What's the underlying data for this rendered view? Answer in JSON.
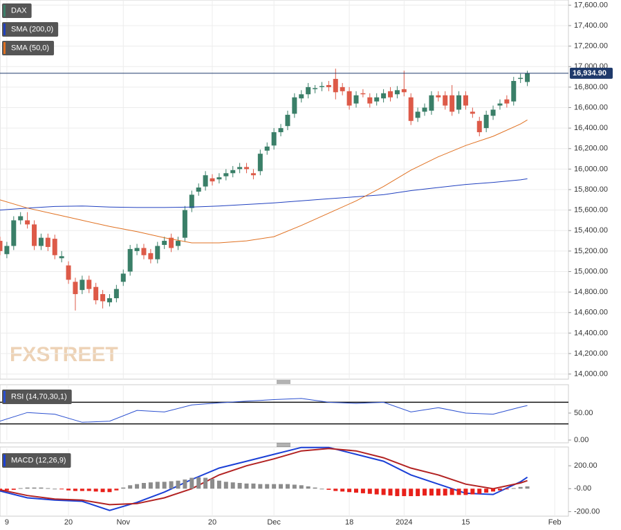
{
  "chart_data": [
    {
      "type": "candlestick",
      "watermark": "FXSTREET",
      "xlim": [
        0,
        83
      ],
      "ylim": [
        13950,
        17650
      ],
      "yticks": [
        {
          "value": 14000,
          "label": "14,000.00"
        },
        {
          "value": 14200,
          "label": "14,200.00"
        },
        {
          "value": 14400,
          "label": "14,400.00"
        },
        {
          "value": 14600,
          "label": "14,600.00"
        },
        {
          "value": 14800,
          "label": "14,800.00"
        },
        {
          "value": 15000,
          "label": "15,000.00"
        },
        {
          "value": 15200,
          "label": "15,200.00"
        },
        {
          "value": 15400,
          "label": "15,400.00"
        },
        {
          "value": 15600,
          "label": "15,600.00"
        },
        {
          "value": 15800,
          "label": "15,800.00"
        },
        {
          "value": 16000,
          "label": "16,000.00"
        },
        {
          "value": 16200,
          "label": "16,200.00"
        },
        {
          "value": 16400,
          "label": "16,400.00"
        },
        {
          "value": 16600,
          "label": "16,600.00"
        },
        {
          "value": 16800,
          "label": "16,800.00"
        },
        {
          "value": 17000,
          "label": "17,000.00"
        },
        {
          "value": 17200,
          "label": "17,200.00"
        },
        {
          "value": 17400,
          "label": "17,400.00"
        },
        {
          "value": 17600,
          "label": "17,600.00"
        }
      ],
      "last_value": {
        "value": 16934.9,
        "label": "16,934.90"
      },
      "last_color": "#1f3a6b",
      "grid": true,
      "series": [
        {
          "name": "DAX",
          "type": "candle",
          "color": "#3a7f68",
          "up_color": "#3a7f68",
          "down_color": "#dd5a48",
          "open": [
            15300,
            15170,
            15250,
            15500,
            15500,
            15460,
            15250,
            15330,
            15320,
            15130,
            15060,
            14900,
            14820,
            14920,
            14850,
            14780,
            14700,
            14740,
            14900,
            15000,
            15200,
            15230,
            15180,
            15120,
            15260,
            15330,
            15250,
            15330,
            15620,
            15780,
            15830,
            15910,
            15900,
            15930,
            15960,
            16000,
            16020,
            15960,
            15980,
            16180,
            16230,
            16360,
            16420,
            16540,
            16690,
            16730,
            16780,
            16800,
            16820,
            16880,
            16800,
            16760,
            16640,
            16740,
            16700,
            16660,
            16690,
            16760,
            16730,
            16780,
            16700,
            16500,
            16560,
            16570,
            16720,
            16720,
            16720,
            16580,
            16720,
            16560,
            16470,
            16400,
            16520,
            16620,
            16680,
            16660,
            16880,
            16850
          ],
          "high": [
            15340,
            15290,
            15540,
            15580,
            15580,
            15500,
            15370,
            15370,
            15360,
            15200,
            15100,
            14940,
            14960,
            14960,
            14890,
            14820,
            14780,
            14870,
            15020,
            15260,
            15270,
            15270,
            15220,
            15290,
            15340,
            15370,
            15340,
            15640,
            15790,
            15860,
            15980,
            15950,
            15960,
            16000,
            16030,
            16060,
            16060,
            16000,
            16190,
            16260,
            16400,
            16440,
            16570,
            16740,
            16770,
            16840,
            16820,
            16850,
            16860,
            16980,
            16840,
            16800,
            16760,
            16780,
            16740,
            16740,
            16780,
            16800,
            16810,
            16960,
            16740,
            16600,
            16640,
            16760,
            16760,
            16760,
            16820,
            16760,
            16760,
            16600,
            16510,
            16570,
            16620,
            16680,
            16720,
            16900,
            16930,
            16960
          ],
          "low": [
            15160,
            15130,
            15210,
            15460,
            15420,
            15210,
            15210,
            15200,
            15120,
            15090,
            14880,
            14620,
            14780,
            14790,
            14680,
            14640,
            14660,
            14700,
            14860,
            14960,
            15160,
            15120,
            15080,
            15080,
            15220,
            15190,
            15210,
            15290,
            15580,
            15740,
            15790,
            15840,
            15860,
            15890,
            15920,
            15960,
            15960,
            15900,
            15940,
            16140,
            16190,
            16320,
            16380,
            16500,
            16650,
            16690,
            16740,
            16760,
            16760,
            16680,
            16720,
            16580,
            16600,
            16700,
            16600,
            16620,
            16650,
            16660,
            16690,
            16710,
            16430,
            16460,
            16520,
            16530,
            16660,
            16580,
            16520,
            16540,
            16580,
            16500,
            16320,
            16360,
            16480,
            16580,
            16600,
            16620,
            16840,
            16810
          ],
          "close": [
            15200,
            15250,
            15500,
            15540,
            15460,
            15250,
            15330,
            15240,
            15160,
            15150,
            14920,
            14780,
            14920,
            14830,
            14720,
            14710,
            14740,
            14830,
            14980,
            15220,
            15230,
            15160,
            15120,
            15250,
            15300,
            15230,
            15300,
            15600,
            15750,
            15820,
            15940,
            15880,
            15920,
            15960,
            15990,
            16020,
            16000,
            15940,
            16150,
            16220,
            16360,
            16400,
            16530,
            16700,
            16730,
            16800,
            16790,
            16810,
            16800,
            16750,
            16760,
            16620,
            16720,
            16730,
            16640,
            16700,
            16740,
            16700,
            16770,
            16750,
            16470,
            16560,
            16600,
            16720,
            16700,
            16620,
            16560,
            16720,
            16620,
            16540,
            16360,
            16530,
            16580,
            16640,
            16640,
            16860,
            16890,
            16935
          ]
        },
        {
          "name": "SMA (200,0)",
          "type": "line",
          "color": "#1f3fbf",
          "x": [
            0,
            4,
            8,
            12,
            16,
            20,
            24,
            28,
            32,
            36,
            40,
            44,
            48,
            52,
            56,
            60,
            64,
            68,
            72,
            76,
            77
          ],
          "values": [
            15600,
            15620,
            15635,
            15640,
            15630,
            15625,
            15625,
            15630,
            15640,
            15655,
            15670,
            15690,
            15710,
            15730,
            15750,
            15790,
            15820,
            15850,
            15870,
            15895,
            15905
          ]
        },
        {
          "name": "SMA (50,0)",
          "type": "line",
          "color": "#e07020",
          "x": [
            0,
            4,
            8,
            12,
            16,
            20,
            24,
            28,
            32,
            36,
            40,
            44,
            48,
            52,
            56,
            60,
            64,
            68,
            72,
            76,
            77
          ],
          "values": [
            15700,
            15620,
            15560,
            15500,
            15440,
            15390,
            15330,
            15280,
            15280,
            15300,
            15340,
            15450,
            15570,
            15690,
            15830,
            15990,
            16120,
            16230,
            16320,
            16440,
            16480
          ]
        }
      ]
    },
    {
      "type": "line",
      "xlim": [
        0,
        83
      ],
      "ylim": [
        0,
        100
      ],
      "yticks": [
        {
          "value": 0,
          "label": "0.00"
        },
        {
          "value": 50,
          "label": "50.00"
        }
      ],
      "levels": [
        70,
        30
      ],
      "series": [
        {
          "name": "RSI (14,70,30,1)",
          "color": "#2a4fd0",
          "x": [
            0,
            4,
            8,
            12,
            16,
            20,
            24,
            28,
            32,
            36,
            40,
            44,
            48,
            52,
            56,
            60,
            64,
            68,
            72,
            76,
            77
          ],
          "values": [
            35,
            51,
            48,
            33,
            35,
            55,
            52,
            65,
            69,
            72,
            75,
            77,
            70,
            68,
            70,
            52,
            60,
            50,
            48,
            61,
            64
          ]
        }
      ]
    },
    {
      "type": "macd",
      "xlim": [
        0,
        83
      ],
      "ylim": [
        -240,
        340
      ],
      "yticks": [
        {
          "value": -200,
          "label": "-200.00"
        },
        {
          "value": 0,
          "label": "-0.00"
        },
        {
          "value": 200,
          "label": "200.00"
        }
      ],
      "xticks": [
        {
          "value": 1,
          "label": "9"
        },
        {
          "value": 10,
          "label": "20"
        },
        {
          "value": 18,
          "label": "Nov"
        },
        {
          "value": 31,
          "label": "20"
        },
        {
          "value": 40,
          "label": "Dec"
        },
        {
          "value": 51,
          "label": "18"
        },
        {
          "value": 59,
          "label": "2024"
        },
        {
          "value": 68,
          "label": "15"
        },
        {
          "value": 81,
          "label": "Feb"
        }
      ],
      "series": [
        {
          "name": "MACD (12,26,9)",
          "type": "line",
          "color": "#1a3fd6",
          "x": [
            0,
            4,
            8,
            12,
            16,
            20,
            24,
            28,
            32,
            36,
            40,
            44,
            48,
            52,
            56,
            60,
            64,
            68,
            72,
            76,
            77
          ],
          "values": [
            -20,
            -80,
            -100,
            -110,
            -190,
            -120,
            -30,
            80,
            180,
            240,
            300,
            360,
            360,
            300,
            240,
            120,
            40,
            -40,
            -50,
            60,
            100
          ]
        },
        {
          "type": "line",
          "color": "#b22222",
          "x": [
            0,
            4,
            8,
            12,
            16,
            20,
            24,
            28,
            32,
            36,
            40,
            44,
            48,
            52,
            56,
            60,
            64,
            68,
            72,
            76,
            77
          ],
          "values": [
            -10,
            -60,
            -90,
            -100,
            -140,
            -130,
            -80,
            0,
            120,
            200,
            260,
            330,
            350,
            330,
            270,
            180,
            120,
            40,
            0,
            50,
            70
          ]
        },
        {
          "type": "histogram",
          "up_color": "#8c8c8c",
          "down_color": "#e8201a",
          "values": [
            -10,
            -15,
            -10,
            5,
            10,
            10,
            10,
            5,
            0,
            -5,
            -15,
            -20,
            -20,
            -20,
            -25,
            -30,
            -30,
            -15,
            10,
            30,
            40,
            50,
            55,
            60,
            60,
            65,
            70,
            80,
            95,
            100,
            95,
            85,
            70,
            60,
            55,
            50,
            45,
            45,
            40,
            40,
            40,
            40,
            40,
            35,
            30,
            20,
            10,
            0,
            -10,
            -20,
            -25,
            -30,
            -35,
            -40,
            -45,
            -50,
            -55,
            -60,
            -65,
            -65,
            -65,
            -65,
            -60,
            -60,
            -60,
            -60,
            -55,
            -55,
            -55,
            -50,
            -45,
            -35,
            -25,
            -15,
            -5,
            5,
            15,
            20
          ]
        }
      ]
    }
  ]
}
